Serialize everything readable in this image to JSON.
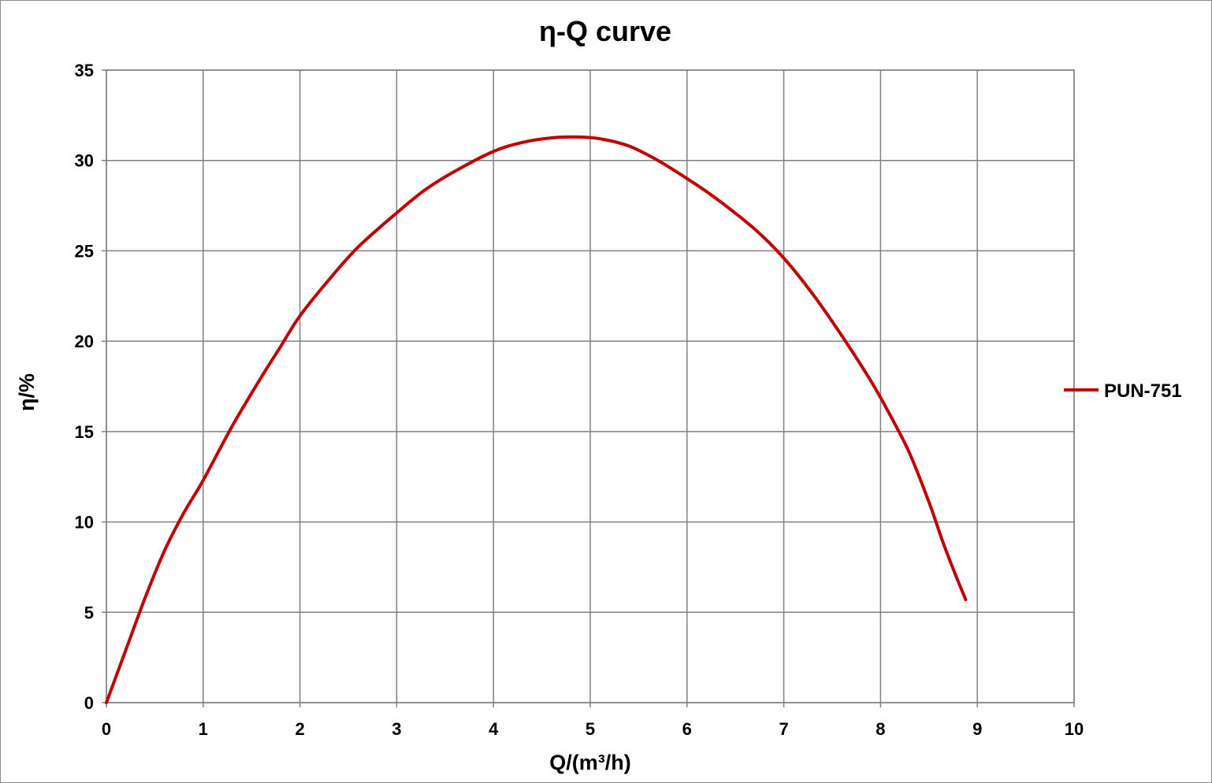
{
  "chart_data": {
    "type": "line",
    "title": "η-Q  curve",
    "xlabel": "Q/(m³/h)",
    "ylabel": "η/%",
    "xlim": [
      0,
      10
    ],
    "ylim": [
      0,
      35
    ],
    "x_ticks": [
      0,
      1,
      2,
      3,
      4,
      5,
      6,
      7,
      8,
      9,
      10
    ],
    "y_ticks": [
      0,
      5,
      10,
      15,
      20,
      25,
      30,
      35
    ],
    "grid": true,
    "legend_position": "right",
    "series": [
      {
        "name": "PUN-751",
        "color": "#c00000",
        "x": [
          0,
          0.2,
          0.4,
          0.6,
          0.8,
          1.0,
          1.3,
          1.6,
          1.8,
          2.0,
          2.3,
          2.6,
          3.0,
          3.3,
          3.6,
          4.0,
          4.3,
          4.6,
          4.85,
          5.1,
          5.4,
          5.7,
          6.0,
          6.3,
          6.7,
          7.0,
          7.3,
          7.6,
          7.9,
          8.1,
          8.3,
          8.5,
          8.65,
          8.78,
          8.88
        ],
        "y": [
          0,
          2.9,
          5.8,
          8.4,
          10.5,
          12.3,
          15.3,
          18.0,
          19.7,
          21.4,
          23.4,
          25.2,
          27.1,
          28.4,
          29.4,
          30.5,
          31.0,
          31.25,
          31.3,
          31.2,
          30.8,
          30.0,
          29.0,
          27.9,
          26.2,
          24.6,
          22.6,
          20.3,
          17.8,
          15.9,
          13.8,
          11.1,
          8.8,
          7.0,
          5.7
        ]
      }
    ]
  }
}
